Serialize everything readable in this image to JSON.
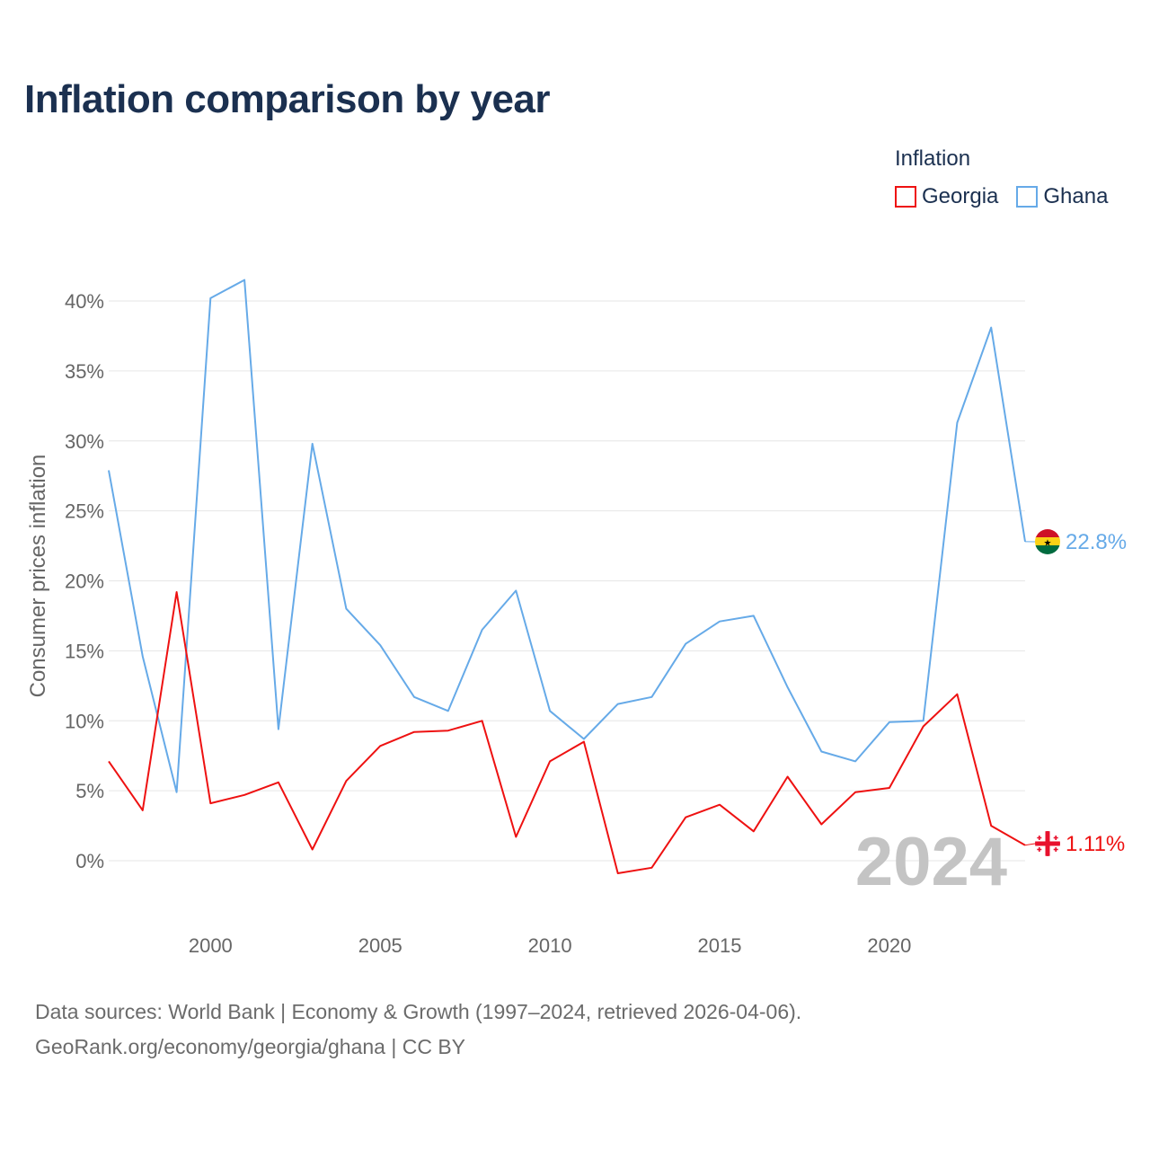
{
  "title": "Inflation comparison by year",
  "legend": {
    "title": "Inflation",
    "items": [
      {
        "name": "Georgia",
        "color": "#ee1111"
      },
      {
        "name": "Ghana",
        "color": "#66aae8"
      }
    ]
  },
  "watermark_year": "2024",
  "end_labels": {
    "ghana": "22.8%",
    "georgia": "1.11%"
  },
  "source": {
    "line1": "Data sources: World Bank | Economy & Growth (1997–2024, retrieved 2026-04-06).",
    "line2": "GeoRank.org/economy/georgia/ghana | CC BY"
  },
  "chart_data": {
    "type": "line",
    "title": "Inflation comparison by year",
    "xlabel": "",
    "ylabel": "Consumer prices inflation",
    "xlim": [
      1997,
      2024
    ],
    "ylim": [
      -2,
      42
    ],
    "x_ticks": [
      2000,
      2005,
      2010,
      2015,
      2020
    ],
    "y_ticks": [
      0,
      5,
      10,
      15,
      20,
      25,
      30,
      35,
      40
    ],
    "y_tick_labels": [
      "0%",
      "5%",
      "10%",
      "15%",
      "20%",
      "25%",
      "30%",
      "35%",
      "40%"
    ],
    "x": [
      1997,
      1998,
      1999,
      2000,
      2001,
      2002,
      2003,
      2004,
      2005,
      2006,
      2007,
      2008,
      2009,
      2010,
      2011,
      2012,
      2013,
      2014,
      2015,
      2016,
      2017,
      2018,
      2019,
      2020,
      2021,
      2022,
      2023,
      2024
    ],
    "series": [
      {
        "name": "Georgia",
        "color": "#ee1111",
        "values": [
          7.1,
          3.6,
          19.2,
          4.1,
          4.7,
          5.6,
          0.8,
          5.7,
          8.2,
          9.2,
          9.3,
          10.0,
          1.7,
          7.1,
          8.5,
          -0.9,
          -0.5,
          3.1,
          4.0,
          2.1,
          6.0,
          2.6,
          4.9,
          5.2,
          9.6,
          11.9,
          2.5,
          1.11
        ]
      },
      {
        "name": "Ghana",
        "color": "#66aae8",
        "values": [
          27.9,
          14.6,
          4.9,
          40.2,
          41.5,
          9.4,
          29.8,
          18.0,
          15.4,
          11.7,
          10.7,
          16.5,
          19.3,
          10.7,
          8.7,
          11.2,
          11.7,
          15.5,
          17.1,
          17.5,
          12.4,
          7.8,
          7.1,
          9.9,
          10.0,
          31.3,
          38.1,
          22.8
        ]
      }
    ],
    "grid": true,
    "legend_position": "top-right"
  }
}
